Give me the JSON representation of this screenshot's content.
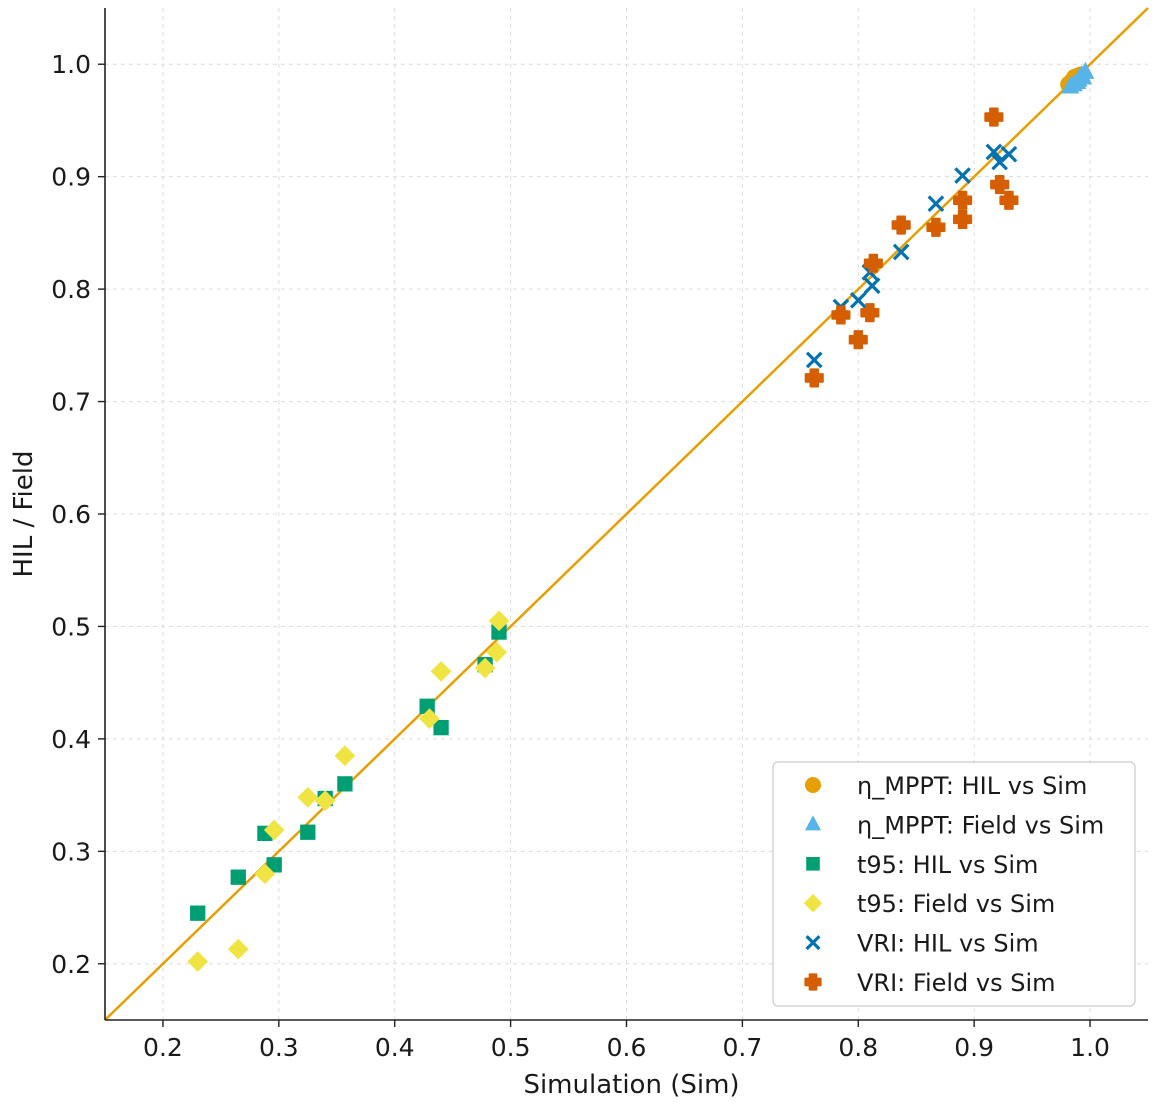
{
  "chart_data": {
    "type": "scatter",
    "title": "",
    "xlabel": "Simulation (Sim)",
    "ylabel": "HIL / Field",
    "xlim": [
      0.15,
      1.05
    ],
    "ylim": [
      0.15,
      1.05
    ],
    "xticks": [
      "0.2",
      "0.3",
      "0.4",
      "0.5",
      "0.6",
      "0.7",
      "0.8",
      "0.9",
      "1.0"
    ],
    "yticks": [
      "0.2",
      "0.3",
      "0.4",
      "0.5",
      "0.6",
      "0.7",
      "0.8",
      "0.9",
      "1.0"
    ],
    "grid": true,
    "legend_position": "bottom-right",
    "reference_line": {
      "name": "y = x",
      "color": "#E69F00",
      "from": [
        0.15,
        0.15
      ],
      "to": [
        1.05,
        1.05
      ]
    },
    "series": [
      {
        "name": "η_MPPT: HIL vs Sim",
        "marker": "circle",
        "color": "#E69F00",
        "points": [
          [
            0.982,
            0.982
          ],
          [
            0.985,
            0.985
          ],
          [
            0.988,
            0.986
          ],
          [
            0.99,
            0.989
          ],
          [
            0.992,
            0.99
          ],
          [
            0.987,
            0.988
          ],
          [
            0.984,
            0.983
          ]
        ]
      },
      {
        "name": "η_MPPT: Field vs Sim",
        "marker": "triangle",
        "color": "#56B4E9",
        "points": [
          [
            0.986,
            0.982
          ],
          [
            0.99,
            0.986
          ],
          [
            0.993,
            0.99
          ],
          [
            0.996,
            0.993
          ],
          [
            0.989,
            0.984
          ],
          [
            0.994,
            0.988
          ],
          [
            0.983,
            0.98
          ]
        ]
      },
      {
        "name": "t95: HIL vs Sim",
        "marker": "square",
        "color": "#009E73",
        "points": [
          [
            0.23,
            0.245
          ],
          [
            0.265,
            0.277
          ],
          [
            0.288,
            0.316
          ],
          [
            0.296,
            0.288
          ],
          [
            0.325,
            0.317
          ],
          [
            0.34,
            0.347
          ],
          [
            0.357,
            0.36
          ],
          [
            0.428,
            0.429
          ],
          [
            0.44,
            0.41
          ],
          [
            0.478,
            0.466
          ],
          [
            0.49,
            0.495
          ]
        ]
      },
      {
        "name": "t95: Field vs Sim",
        "marker": "diamond",
        "color": "#F0E442",
        "points": [
          [
            0.23,
            0.202
          ],
          [
            0.265,
            0.213
          ],
          [
            0.288,
            0.28
          ],
          [
            0.296,
            0.319
          ],
          [
            0.325,
            0.348
          ],
          [
            0.34,
            0.345
          ],
          [
            0.357,
            0.385
          ],
          [
            0.43,
            0.418
          ],
          [
            0.44,
            0.46
          ],
          [
            0.478,
            0.463
          ],
          [
            0.488,
            0.477
          ],
          [
            0.49,
            0.505
          ]
        ]
      },
      {
        "name": "VRI: HIL vs Sim",
        "marker": "x",
        "color": "#0072B2",
        "points": [
          [
            0.762,
            0.737
          ],
          [
            0.785,
            0.784
          ],
          [
            0.8,
            0.79
          ],
          [
            0.81,
            0.815
          ],
          [
            0.812,
            0.803
          ],
          [
            0.837,
            0.833
          ],
          [
            0.867,
            0.876
          ],
          [
            0.89,
            0.901
          ],
          [
            0.917,
            0.922
          ],
          [
            0.922,
            0.913
          ],
          [
            0.93,
            0.92
          ]
        ]
      },
      {
        "name": "VRI: Field vs Sim",
        "marker": "plus",
        "color": "#D55E00",
        "points": [
          [
            0.762,
            0.721
          ],
          [
            0.785,
            0.777
          ],
          [
            0.8,
            0.755
          ],
          [
            0.81,
            0.779
          ],
          [
            0.813,
            0.823
          ],
          [
            0.837,
            0.857
          ],
          [
            0.867,
            0.855
          ],
          [
            0.89,
            0.862
          ],
          [
            0.89,
            0.879
          ],
          [
            0.917,
            0.953
          ],
          [
            0.922,
            0.893
          ],
          [
            0.93,
            0.879
          ]
        ]
      }
    ]
  }
}
